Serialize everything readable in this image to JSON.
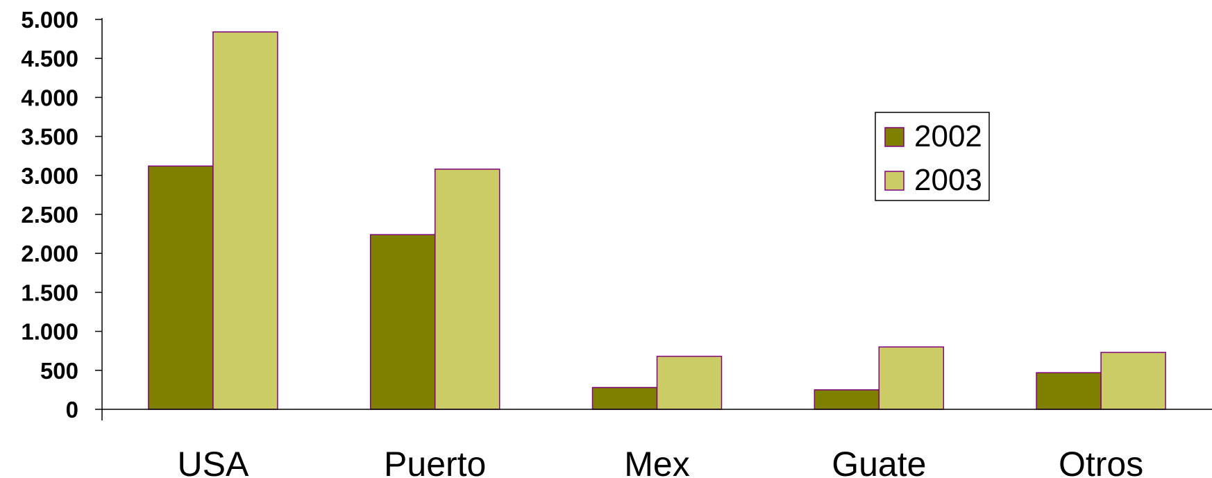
{
  "chart_data": {
    "type": "bar",
    "categories": [
      "USA",
      "Puerto",
      "Mex",
      "Guate",
      "Otros"
    ],
    "series": [
      {
        "name": "2002",
        "values": [
          3120,
          2240,
          280,
          250,
          470
        ],
        "color": "#808000"
      },
      {
        "name": "2003",
        "values": [
          4840,
          3080,
          680,
          800,
          730
        ],
        "color": "#CCCC66"
      }
    ],
    "bar_stroke": "#800080",
    "ylim": [
      0,
      5000
    ],
    "yticks": [
      0,
      500,
      1000,
      1500,
      2000,
      2500,
      3000,
      3500,
      4000,
      4500,
      5000
    ],
    "ytick_labels": [
      "0",
      "500",
      "1.000",
      "1.500",
      "2.000",
      "2.500",
      "3.000",
      "3.500",
      "4.000",
      "4.500",
      "5.000"
    ],
    "title": "",
    "xlabel": "",
    "ylabel": "",
    "grid": false,
    "legend": {
      "position": "right",
      "entries": [
        "2002",
        "2003"
      ]
    }
  }
}
